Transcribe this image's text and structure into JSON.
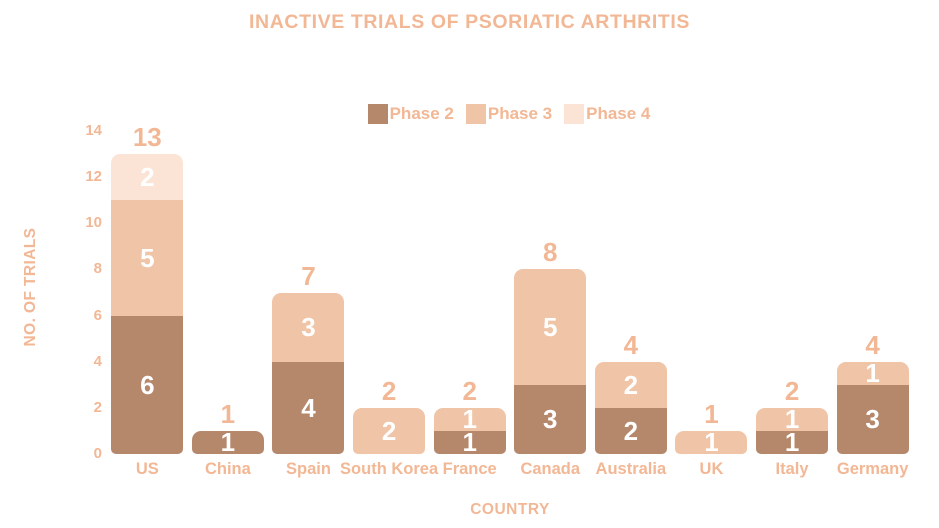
{
  "title": "INACTIVE TRIALS OF PSORIATIC ARTHRITIS",
  "colors": {
    "background": "#FFFFFF",
    "text_peach": "#F2B794",
    "phase2": "#B5876B",
    "phase3": "#F0C4A6",
    "phase4": "#FBE4D5",
    "value_label": "#FFFFFF"
  },
  "legend": {
    "items": [
      {
        "label": "Phase 2",
        "color": "#B5876B"
      },
      {
        "label": "Phase 3",
        "color": "#F0C4A6"
      },
      {
        "label": "Phase 4",
        "color": "#FBE4D5"
      }
    ]
  },
  "chart_data": {
    "type": "bar",
    "stacked": true,
    "title": "INACTIVE TRIALS OF PSORIATIC ARTHRITIS",
    "xlabel": "COUNTRY",
    "ylabel": "NO. OF TRIALS",
    "categories": [
      "US",
      "China",
      "Spain",
      "South Korea",
      "France",
      "Canada",
      "Australia",
      "UK",
      "Italy",
      "Germany"
    ],
    "series": [
      {
        "name": "Phase 2",
        "color": "#B5876B",
        "values": [
          6,
          1,
          4,
          0,
          1,
          3,
          2,
          0,
          1,
          3
        ]
      },
      {
        "name": "Phase 3",
        "color": "#F0C4A6",
        "values": [
          5,
          0,
          3,
          2,
          1,
          5,
          2,
          1,
          1,
          1
        ]
      },
      {
        "name": "Phase 4",
        "color": "#FBE4D5",
        "values": [
          2,
          0,
          0,
          0,
          0,
          0,
          0,
          0,
          0,
          0
        ]
      }
    ],
    "totals": [
      13,
      1,
      7,
      2,
      2,
      8,
      4,
      1,
      2,
      4
    ],
    "ylim": [
      0,
      14
    ],
    "yticks": [
      0,
      2,
      4,
      6,
      8,
      10,
      12,
      14
    ],
    "grid": false,
    "legend_position": "top-center"
  }
}
